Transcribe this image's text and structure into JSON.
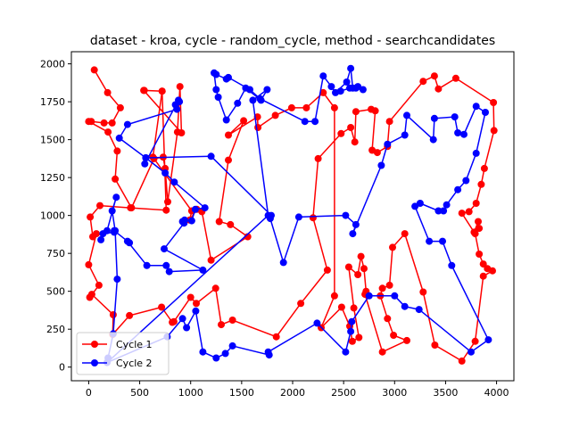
{
  "chart_data": {
    "type": "line",
    "title": "dataset - kroa, cycle - random_cycle, method - searchcandidates",
    "xlabel": "",
    "ylabel": "",
    "xlim": [
      -170,
      4170
    ],
    "ylim": [
      -90,
      2080
    ],
    "xticks": [
      0,
      500,
      1000,
      1500,
      2000,
      2500,
      3000,
      3500,
      4000
    ],
    "yticks": [
      0,
      250,
      500,
      750,
      1000,
      1250,
      1500,
      1750,
      2000
    ],
    "grid": false,
    "legend_position": "lower-left",
    "series": [
      {
        "name": "Cycle 1",
        "color": "#ff0000",
        "points": [
          [
            55,
            1960
          ],
          [
            185,
            1810
          ],
          [
            310,
            1710
          ],
          [
            230,
            1610
          ],
          [
            150,
            1610
          ],
          [
            25,
            1620
          ],
          [
            0,
            1620
          ],
          [
            190,
            1550
          ],
          [
            280,
            1425
          ],
          [
            260,
            1240
          ],
          [
            420,
            1050
          ],
          [
            640,
            1375
          ],
          [
            730,
            1385
          ],
          [
            750,
            1310
          ],
          [
            775,
            1090
          ],
          [
            870,
            1550
          ],
          [
            895,
            1850
          ],
          [
            910,
            1545
          ],
          [
            540,
            1825
          ],
          [
            720,
            1820
          ],
          [
            760,
            1035
          ],
          [
            410,
            1050
          ],
          [
            110,
            1065
          ],
          [
            15,
            990
          ],
          [
            40,
            860
          ],
          [
            75,
            880
          ],
          [
            0,
            675
          ],
          [
            100,
            540
          ],
          [
            10,
            460
          ],
          [
            30,
            480
          ],
          [
            240,
            345
          ],
          [
            235,
            215
          ],
          [
            400,
            340
          ],
          [
            715,
            395
          ],
          [
            820,
            295
          ],
          [
            835,
            300
          ],
          [
            1000,
            460
          ],
          [
            1055,
            420
          ],
          [
            1245,
            520
          ],
          [
            1300,
            280
          ],
          [
            1410,
            310
          ],
          [
            1840,
            200
          ],
          [
            2080,
            420
          ],
          [
            2340,
            640
          ],
          [
            2200,
            985
          ],
          [
            2250,
            1375
          ],
          [
            2475,
            1540
          ],
          [
            2570,
            1580
          ],
          [
            2610,
            1485
          ],
          [
            2620,
            1685
          ],
          [
            2770,
            1700
          ],
          [
            2810,
            1690
          ],
          [
            2780,
            1430
          ],
          [
            2830,
            1415
          ],
          [
            2930,
            1455
          ],
          [
            2950,
            1620
          ],
          [
            3280,
            1885
          ],
          [
            3390,
            1920
          ],
          [
            3430,
            1835
          ],
          [
            3600,
            1905
          ],
          [
            3970,
            1745
          ],
          [
            3975,
            1560
          ],
          [
            3880,
            1310
          ],
          [
            3850,
            1205
          ],
          [
            3800,
            1080
          ],
          [
            3730,
            1025
          ],
          [
            3660,
            1015
          ],
          [
            3780,
            890
          ],
          [
            3820,
            960
          ],
          [
            3830,
            915
          ],
          [
            3790,
            880
          ],
          [
            3830,
            745
          ],
          [
            3870,
            680
          ],
          [
            3910,
            650
          ],
          [
            3960,
            635
          ],
          [
            3870,
            600
          ],
          [
            3790,
            170
          ],
          [
            3660,
            40
          ],
          [
            3395,
            145
          ],
          [
            3280,
            495
          ],
          [
            3100,
            880
          ],
          [
            2980,
            790
          ],
          [
            2950,
            540
          ],
          [
            2880,
            520
          ],
          [
            2860,
            470
          ],
          [
            2930,
            320
          ],
          [
            2990,
            210
          ],
          [
            3120,
            175
          ],
          [
            2880,
            100
          ],
          [
            2710,
            480
          ],
          [
            2720,
            500
          ],
          [
            2700,
            650
          ],
          [
            2670,
            730
          ],
          [
            2640,
            610
          ],
          [
            2550,
            660
          ],
          [
            2600,
            390
          ],
          [
            2650,
            195
          ],
          [
            2585,
            170
          ],
          [
            2560,
            270
          ],
          [
            2480,
            395
          ],
          [
            2280,
            260
          ],
          [
            2410,
            470
          ],
          [
            2410,
            1710
          ],
          [
            2300,
            1810
          ],
          [
            2135,
            1710
          ],
          [
            1990,
            1710
          ],
          [
            1830,
            1660
          ],
          [
            1660,
            1580
          ],
          [
            1655,
            1650
          ],
          [
            1370,
            1530
          ],
          [
            1520,
            1625
          ],
          [
            1370,
            1365
          ],
          [
            1280,
            960
          ],
          [
            1390,
            940
          ],
          [
            1560,
            860
          ],
          [
            1200,
            705
          ],
          [
            1110,
            1025
          ],
          [
            1060,
            1040
          ],
          [
            990,
            970
          ],
          [
            1010,
            1030
          ],
          [
            630,
            1385
          ],
          [
            720,
            1820
          ],
          [
            545,
            1825
          ]
        ]
      },
      {
        "name": "Cycle 2",
        "color": "#0000ff",
        "points": [
          [
            190,
            60
          ],
          [
            240,
            220
          ],
          [
            280,
            580
          ],
          [
            260,
            900
          ],
          [
            230,
            1030
          ],
          [
            270,
            1120
          ],
          [
            180,
            900
          ],
          [
            120,
            840
          ],
          [
            140,
            880
          ],
          [
            250,
            890
          ],
          [
            250,
            900
          ],
          [
            400,
            820
          ],
          [
            380,
            830
          ],
          [
            570,
            670
          ],
          [
            760,
            670
          ],
          [
            790,
            630
          ],
          [
            1120,
            640
          ],
          [
            740,
            780
          ],
          [
            935,
            950
          ],
          [
            940,
            970
          ],
          [
            920,
            960
          ],
          [
            1010,
            965
          ],
          [
            1045,
            1040
          ],
          [
            1140,
            1050
          ],
          [
            840,
            1220
          ],
          [
            750,
            1280
          ],
          [
            560,
            1380
          ],
          [
            550,
            1340
          ],
          [
            880,
            1760
          ],
          [
            850,
            1730
          ],
          [
            890,
            1750
          ],
          [
            865,
            1700
          ],
          [
            380,
            1600
          ],
          [
            300,
            1510
          ],
          [
            560,
            1380
          ],
          [
            1200,
            1390
          ],
          [
            1790,
            1000
          ],
          [
            1780,
            980
          ],
          [
            1910,
            690
          ],
          [
            2060,
            990
          ],
          [
            2520,
            1000
          ],
          [
            2620,
            940
          ],
          [
            2590,
            880
          ],
          [
            2870,
            1330
          ],
          [
            2930,
            1470
          ],
          [
            3100,
            1530
          ],
          [
            3120,
            1660
          ],
          [
            3380,
            1500
          ],
          [
            3390,
            1640
          ],
          [
            3590,
            1650
          ],
          [
            3620,
            1545
          ],
          [
            3680,
            1535
          ],
          [
            3800,
            1720
          ],
          [
            3890,
            1680
          ],
          [
            3800,
            1410
          ],
          [
            3700,
            1230
          ],
          [
            3620,
            1170
          ],
          [
            3510,
            1070
          ],
          [
            3480,
            1030
          ],
          [
            3430,
            1030
          ],
          [
            3250,
            1080
          ],
          [
            3200,
            1060
          ],
          [
            3340,
            830
          ],
          [
            3470,
            830
          ],
          [
            3560,
            670
          ],
          [
            3920,
            180
          ],
          [
            3750,
            100
          ],
          [
            3240,
            380
          ],
          [
            3100,
            400
          ],
          [
            3000,
            470
          ],
          [
            2750,
            470
          ],
          [
            2580,
            300
          ],
          [
            2570,
            235
          ],
          [
            2520,
            100
          ],
          [
            2240,
            290
          ],
          [
            1760,
            100
          ],
          [
            1770,
            80
          ],
          [
            1410,
            140
          ],
          [
            1340,
            90
          ],
          [
            1250,
            60
          ],
          [
            1120,
            100
          ],
          [
            1050,
            370
          ],
          [
            960,
            260
          ],
          [
            920,
            320
          ],
          [
            770,
            200
          ],
          [
            180,
            30
          ],
          [
            1760,
            1000
          ],
          [
            1610,
            1760
          ],
          [
            1750,
            1830
          ],
          [
            1690,
            1760
          ],
          [
            1540,
            1840
          ],
          [
            1460,
            1740
          ],
          [
            1350,
            1630
          ],
          [
            1270,
            1780
          ],
          [
            1250,
            1830
          ],
          [
            1230,
            1940
          ],
          [
            1250,
            1930
          ],
          [
            1350,
            1900
          ],
          [
            1370,
            1910
          ],
          [
            1580,
            1830
          ],
          [
            1680,
            1770
          ],
          [
            2120,
            1620
          ],
          [
            2220,
            1620
          ],
          [
            2300,
            1920
          ],
          [
            2380,
            1850
          ],
          [
            2420,
            1810
          ],
          [
            2530,
            1880
          ],
          [
            2570,
            1970
          ],
          [
            2590,
            1840
          ],
          [
            2640,
            1850
          ],
          [
            2620,
            1840
          ],
          [
            2690,
            1830
          ],
          [
            2560,
            1840
          ],
          [
            2470,
            1820
          ]
        ]
      }
    ]
  }
}
